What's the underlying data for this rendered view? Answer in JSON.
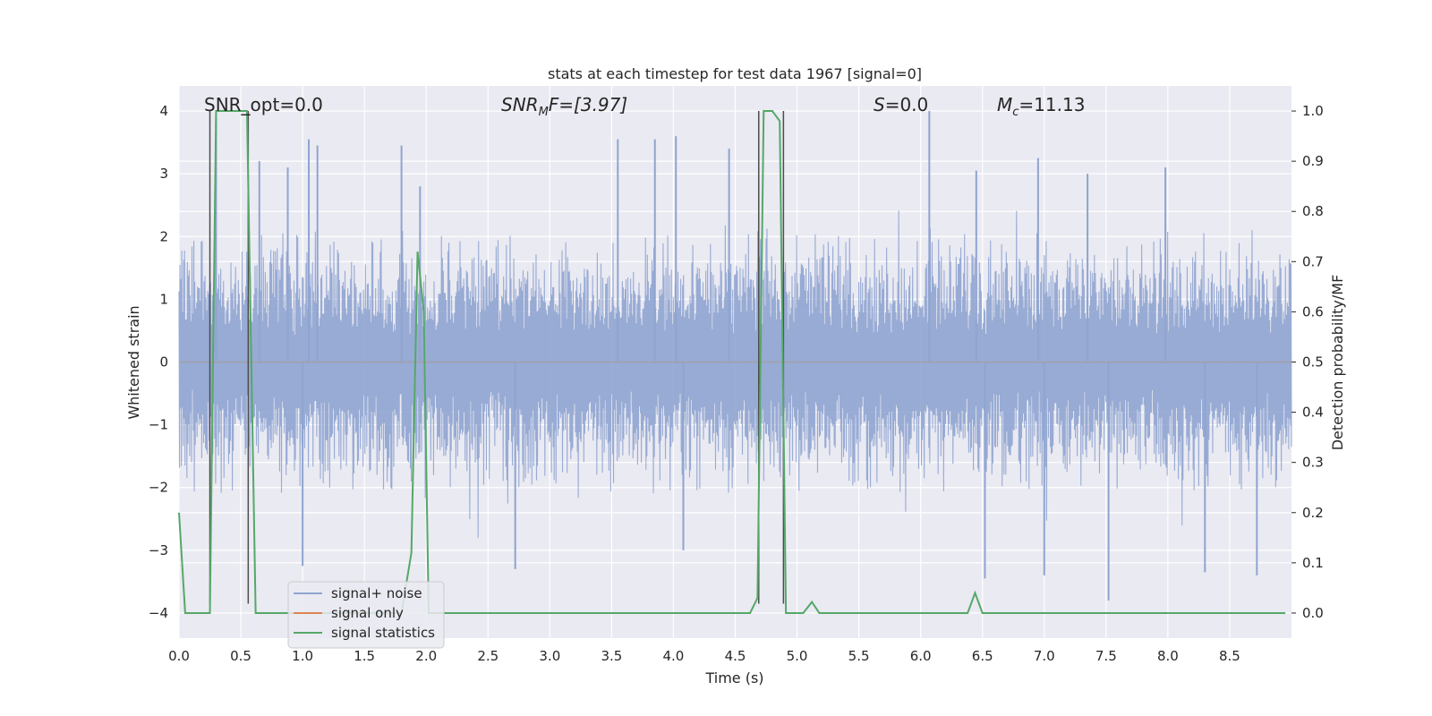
{
  "chart_data": {
    "type": "line",
    "title": "stats at each timestep for test data 1967 [signal=0]",
    "xlabel": "Time (s)",
    "ylabel_left": "Whitened strain",
    "ylabel_right": "Detection probability/MF",
    "xlim": [
      0.0,
      9.0
    ],
    "ylim_left": [
      -4.4,
      4.4
    ],
    "ylim_right": [
      -0.05,
      1.05
    ],
    "xticks": [
      "0.0",
      "0.5",
      "1.0",
      "1.5",
      "2.0",
      "2.5",
      "3.0",
      "3.5",
      "4.0",
      "4.5",
      "5.0",
      "5.5",
      "6.0",
      "6.5",
      "7.0",
      "7.5",
      "8.0",
      "8.5"
    ],
    "yticks_left": [
      "4",
      "3",
      "2",
      "1",
      "0",
      "−1",
      "−2",
      "−3",
      "−4"
    ],
    "yticks_right": [
      "1.0",
      "0.9",
      "0.8",
      "0.7",
      "0.6",
      "0.5",
      "0.4",
      "0.3",
      "0.2",
      "0.1",
      "0.0"
    ],
    "annotations": {
      "snr_opt": "SNR_opt=0.0",
      "snr_mf_base": "SNR",
      "snr_mf_sub": "M",
      "snr_mf_rest": "F=[3.97]",
      "s_var": "S",
      "s_rest": "=0.0",
      "mc_base": "M",
      "mc_sub": "c",
      "mc_rest": "=11.13"
    },
    "legend": [
      {
        "label": "signal+ noise",
        "color": "#8fa4d0"
      },
      {
        "label": "signal only",
        "color": "#dd8452"
      },
      {
        "label": "signal statistics",
        "color": "#55a868"
      }
    ],
    "series": [
      {
        "name": "signal+ noise",
        "kind": "noise",
        "duration": 9.0,
        "envelope_typical": 2.2,
        "spike_peaks": [
          {
            "x": 0.3,
            "y": 3.9
          },
          {
            "x": 0.65,
            "y": 3.2
          },
          {
            "x": 0.88,
            "y": 3.1
          },
          {
            "x": 1.05,
            "y": 3.55
          },
          {
            "x": 1.12,
            "y": 3.45
          },
          {
            "x": 1.8,
            "y": 3.45
          },
          {
            "x": 1.95,
            "y": 2.8
          },
          {
            "x": 3.55,
            "y": 3.55
          },
          {
            "x": 3.85,
            "y": 3.55
          },
          {
            "x": 4.02,
            "y": 3.6
          },
          {
            "x": 4.45,
            "y": 3.4
          },
          {
            "x": 6.07,
            "y": 4.0
          },
          {
            "x": 6.45,
            "y": 3.05
          },
          {
            "x": 6.95,
            "y": 3.25
          },
          {
            "x": 7.35,
            "y": 3.0
          },
          {
            "x": 7.98,
            "y": 3.1
          }
        ],
        "dip_troughs": [
          {
            "x": 1.0,
            "y": -3.25
          },
          {
            "x": 2.72,
            "y": -3.3
          },
          {
            "x": 4.08,
            "y": -3.0
          },
          {
            "x": 6.52,
            "y": -3.45
          },
          {
            "x": 7.0,
            "y": -3.4
          },
          {
            "x": 7.52,
            "y": -3.8
          },
          {
            "x": 8.3,
            "y": -3.35
          },
          {
            "x": 8.72,
            "y": -3.4
          }
        ]
      },
      {
        "name": "signal only",
        "kind": "line",
        "points": [
          [
            0.0,
            0.0
          ],
          [
            9.0,
            0.0
          ]
        ]
      },
      {
        "name": "signal statistics",
        "kind": "line",
        "axis": "right",
        "points": [
          [
            0.0,
            0.2
          ],
          [
            0.05,
            0.0
          ],
          [
            0.2,
            0.0
          ],
          [
            0.25,
            0.0
          ],
          [
            0.3,
            1.0
          ],
          [
            0.45,
            1.0
          ],
          [
            0.55,
            1.0
          ],
          [
            0.62,
            0.0
          ],
          [
            1.8,
            0.0
          ],
          [
            1.88,
            0.12
          ],
          [
            1.93,
            0.72
          ],
          [
            1.98,
            0.6
          ],
          [
            2.02,
            0.0
          ],
          [
            4.62,
            0.0
          ],
          [
            4.68,
            0.03
          ],
          [
            4.73,
            1.0
          ],
          [
            4.8,
            1.0
          ],
          [
            4.86,
            0.98
          ],
          [
            4.91,
            0.0
          ],
          [
            5.05,
            0.0
          ],
          [
            5.12,
            0.022
          ],
          [
            5.18,
            0.0
          ],
          [
            6.38,
            0.0
          ],
          [
            6.44,
            0.04
          ],
          [
            6.5,
            0.0
          ],
          [
            8.95,
            0.0
          ]
        ]
      }
    ],
    "vertical_markers": [
      {
        "x": 0.25,
        "y_from": -3.85,
        "y_to": 4.0
      },
      {
        "x": 0.56,
        "y_from": -3.85,
        "y_to": 4.0
      },
      {
        "x": 4.69,
        "y_from": -3.85,
        "y_to": 4.0
      },
      {
        "x": 4.89,
        "y_from": -3.85,
        "y_to": 4.0
      }
    ]
  },
  "colors": {
    "plot_bg": "#eaeaf2",
    "grid": "#ffffff",
    "noise": "#8fa4d0",
    "signal_only": "#dd8452",
    "stats": "#55a868",
    "marker": "#4d4d4d"
  }
}
